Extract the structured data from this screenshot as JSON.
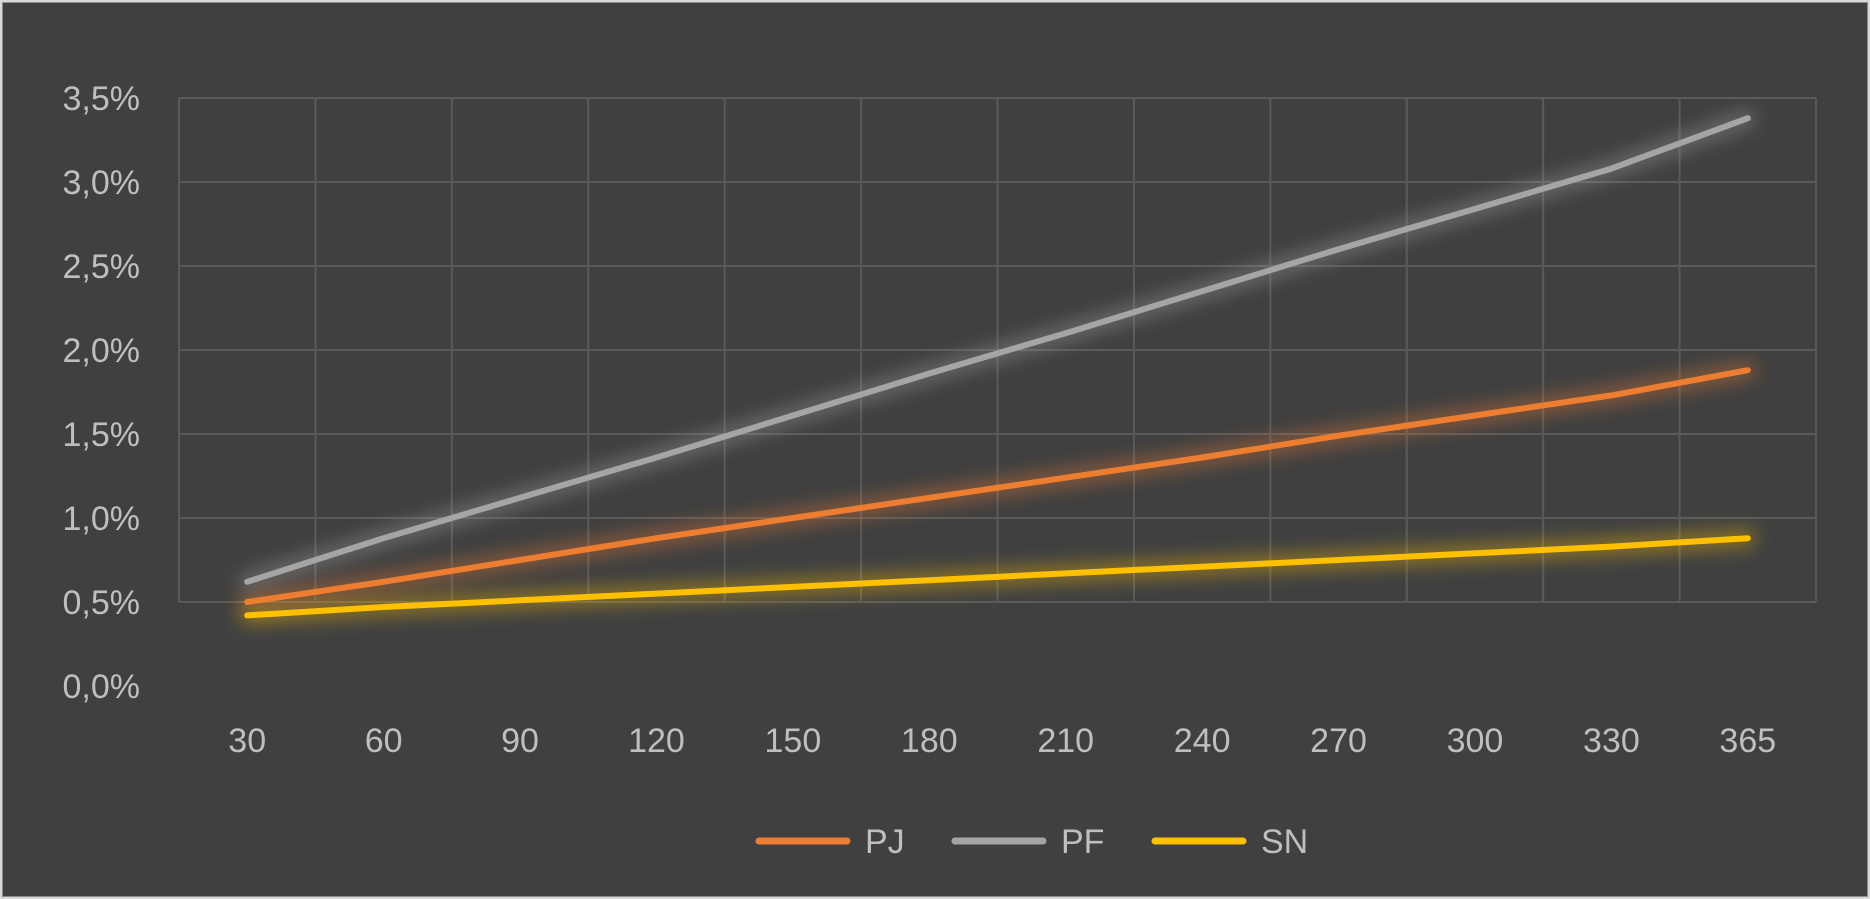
{
  "chart_data": {
    "type": "line",
    "title": "",
    "xlabel": "",
    "ylabel": "",
    "categories": [
      "30",
      "60",
      "90",
      "120",
      "150",
      "180",
      "210",
      "240",
      "270",
      "300",
      "330",
      "365"
    ],
    "y_tick_labels": [
      "0,0%",
      "0,5%",
      "1,0%",
      "1,5%",
      "2,0%",
      "2,5%",
      "3,0%",
      "3,5%"
    ],
    "ylim": [
      0,
      3.5
    ],
    "y_unit": "%",
    "grid": true,
    "legend_position": "bottom",
    "series": [
      {
        "name": "PJ",
        "color": "#ed7d31",
        "values": [
          0.5,
          0.62,
          0.75,
          0.88,
          1.0,
          1.12,
          1.24,
          1.36,
          1.49,
          1.61,
          1.73,
          1.88
        ]
      },
      {
        "name": "PF",
        "color": "#a5a5a5",
        "values": [
          0.62,
          0.88,
          1.12,
          1.36,
          1.61,
          1.86,
          2.1,
          2.35,
          2.6,
          2.84,
          3.08,
          3.38
        ]
      },
      {
        "name": "SN",
        "color": "#ffc000",
        "values": [
          0.42,
          0.47,
          0.51,
          0.55,
          0.59,
          0.63,
          0.67,
          0.71,
          0.75,
          0.79,
          0.83,
          0.88
        ]
      }
    ]
  }
}
